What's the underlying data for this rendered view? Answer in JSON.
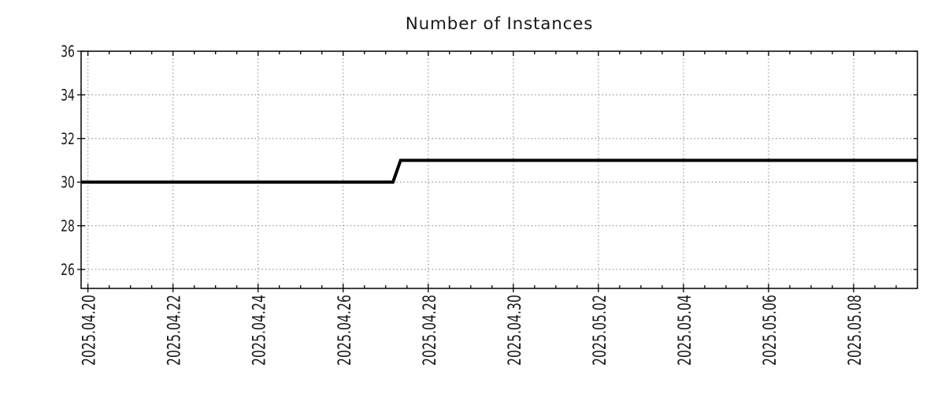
{
  "page": {
    "background": "#ffffff"
  },
  "chart_data": {
    "type": "line",
    "title": "Number of Instances",
    "x_axis": {
      "unit": "days since 2025.04.20 00:00",
      "lim": [
        -0.16,
        19.5
      ],
      "major_ticks": [
        {
          "offset": 0,
          "label": "2025.04.20"
        },
        {
          "offset": 2,
          "label": "2025.04.22"
        },
        {
          "offset": 4,
          "label": "2025.04.24"
        },
        {
          "offset": 6,
          "label": "2025.04.26"
        },
        {
          "offset": 8,
          "label": "2025.04.28"
        },
        {
          "offset": 10,
          "label": "2025.04.30"
        },
        {
          "offset": 12,
          "label": "2025.05.02"
        },
        {
          "offset": 14,
          "label": "2025.05.04"
        },
        {
          "offset": 16,
          "label": "2025.05.06"
        },
        {
          "offset": 18,
          "label": "2025.05.08"
        }
      ],
      "minor_tick_step": 0.5
    },
    "y_axis": {
      "lim": [
        25.13,
        36
      ],
      "ticks": [
        26,
        28,
        30,
        32,
        34,
        36
      ]
    },
    "grid": {
      "show": true,
      "style": "dotted",
      "color": "#999999"
    },
    "series": [
      {
        "name": "Number of Instances",
        "color": "#000000",
        "line_width": 4,
        "points": [
          {
            "x": -0.16,
            "y": 30
          },
          {
            "x": 7.17,
            "y": 30
          },
          {
            "x": 7.35,
            "y": 31
          },
          {
            "x": 19.5,
            "y": 31
          }
        ],
        "description": "Constant at 30 instances, steps up to 31 around 2025.04.27, stays at 31 through 2025.05.09"
      }
    ],
    "colors": {
      "axis": "#000000",
      "text": "#1a1a1a"
    }
  }
}
